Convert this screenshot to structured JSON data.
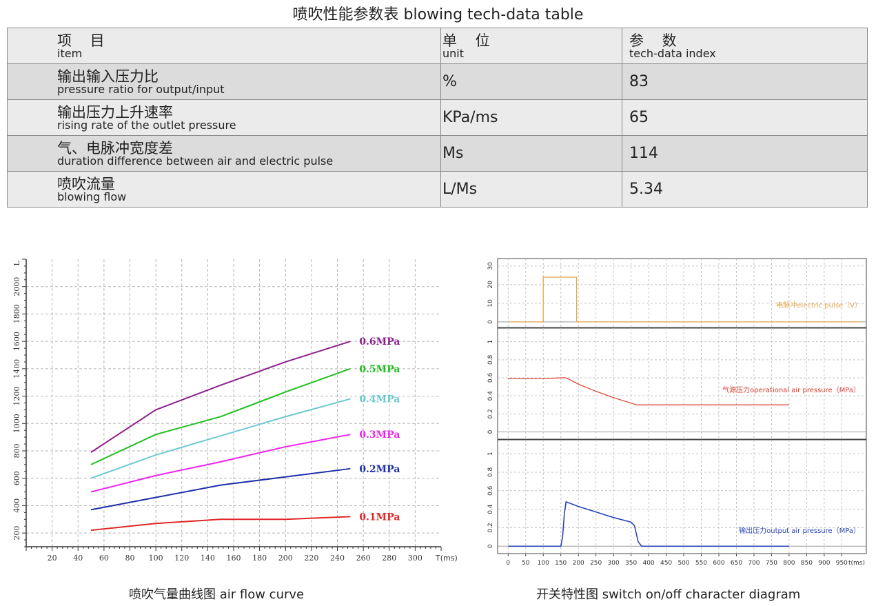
{
  "title": "喷吹性能参数表  blowing tech-data table",
  "table": {
    "header": {
      "item_cn": "项 目",
      "item_en": "item",
      "unit_cn": "单 位",
      "unit_en": "unit",
      "value_cn": "参 数",
      "value_en": "tech-data index"
    },
    "rows": [
      {
        "cn": "输出输入压力比",
        "en": "pressure ratio for output/input",
        "unit": "%",
        "value": "83"
      },
      {
        "cn": "输出压力上升速率",
        "en": "rising rate of the outlet pressure",
        "unit": "KPa/ms",
        "value": "65"
      },
      {
        "cn": "气、电脉冲宽度差",
        "en": "duration difference between air and electric pulse",
        "unit": "Ms",
        "value": "114"
      },
      {
        "cn": "喷吹流量",
        "en": "blowing flow",
        "unit": "L/Ms",
        "value": "5.34"
      }
    ]
  },
  "captions": {
    "left": "喷吹气量曲线图  air flow curve",
    "right": "开关特性图  switch on/off character diagram"
  },
  "chart_data": [
    {
      "type": "line",
      "xlabel": "T(ms)",
      "ylabel": "L",
      "xlim": [
        0,
        320
      ],
      "ylim": [
        100,
        2200
      ],
      "x_ticks": [
        20,
        40,
        60,
        80,
        100,
        120,
        140,
        160,
        180,
        200,
        220,
        240,
        260,
        280,
        300
      ],
      "y_ticks": [
        200,
        400,
        600,
        800,
        1000,
        1200,
        1400,
        1600,
        1800,
        2000
      ],
      "grid": true,
      "x": [
        50,
        100,
        150,
        200,
        250
      ],
      "series": [
        {
          "name": "0.6MPa",
          "color": "#8e1f8e",
          "values": [
            790,
            1100,
            1280,
            1450,
            1600
          ]
        },
        {
          "name": "0.5MPa",
          "color": "#1fbf1f",
          "values": [
            700,
            920,
            1050,
            1230,
            1400
          ]
        },
        {
          "name": "0.4MPa",
          "color": "#6cc8d2",
          "values": [
            600,
            770,
            910,
            1050,
            1180
          ]
        },
        {
          "name": "0.3MPa",
          "color": "#ee22ee",
          "values": [
            500,
            620,
            720,
            830,
            920
          ]
        },
        {
          "name": "0.2MPa",
          "color": "#1f2fa8",
          "values": [
            370,
            460,
            550,
            610,
            670
          ]
        },
        {
          "name": "0.1MPa",
          "color": "#e02626",
          "values": [
            220,
            270,
            300,
            300,
            320
          ]
        }
      ]
    },
    {
      "type": "line",
      "xlabel": "t(ms)",
      "xlim": [
        -30,
        1020
      ],
      "x_ticks": [
        0,
        50,
        100,
        150,
        200,
        250,
        300,
        350,
        400,
        450,
        500,
        550,
        600,
        650,
        700,
        750,
        800,
        850,
        900,
        950
      ],
      "grid": true,
      "panels": [
        {
          "name": "电脉冲electric pulse（V）",
          "color": "#e3a54a",
          "ylim": [
            -3,
            34
          ],
          "y_ticks": [
            0,
            10,
            20,
            30
          ],
          "x": [
            0,
            100,
            100,
            195,
            195,
            1000
          ],
          "values": [
            0,
            0,
            24,
            24,
            0,
            0
          ]
        },
        {
          "name": "气源压力operational air pressure（MPa）",
          "color": "#d93a2a",
          "ylim": [
            -0.08,
            1.15
          ],
          "y_ticks": [
            0,
            0.2,
            0.4,
            0.6,
            0.8,
            1
          ],
          "x": [
            0,
            100,
            150,
            165,
            200,
            250,
            300,
            350,
            365,
            400,
            500,
            600,
            700,
            800
          ],
          "values": [
            0.59,
            0.59,
            0.6,
            0.6,
            0.53,
            0.45,
            0.38,
            0.32,
            0.3,
            0.3,
            0.3,
            0.3,
            0.3,
            0.3
          ]
        },
        {
          "name": "输出压力output air pressure（MPa）",
          "color": "#2945b8",
          "ylim": [
            -0.08,
            1.15
          ],
          "y_ticks": [
            0,
            0.2,
            0.4,
            0.6,
            0.8,
            1
          ],
          "x": [
            0,
            150,
            155,
            160,
            165,
            200,
            250,
            300,
            350,
            360,
            370,
            380,
            800
          ],
          "values": [
            0,
            0,
            0.1,
            0.35,
            0.48,
            0.43,
            0.37,
            0.31,
            0.26,
            0.22,
            0.05,
            0,
            0
          ]
        }
      ]
    }
  ]
}
